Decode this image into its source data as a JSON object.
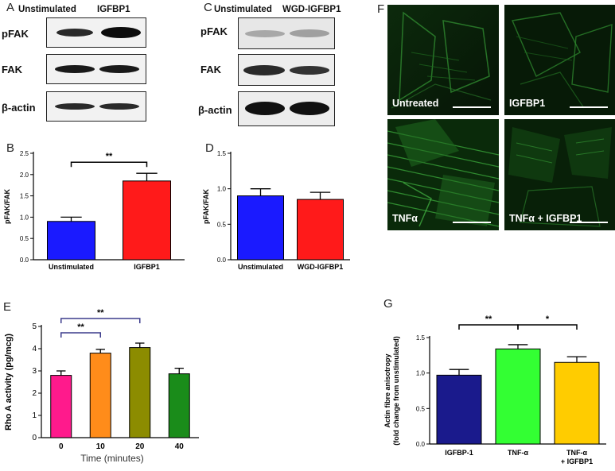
{
  "panels": {
    "A": {
      "letter": "A",
      "headers": [
        "Unstimulated",
        "IGFBP1"
      ],
      "rows": [
        "pFAK",
        "FAK",
        "β-actin"
      ]
    },
    "C": {
      "letter": "C",
      "headers": [
        "Unstimulated",
        "WGD-IGFBP1"
      ],
      "rows": [
        "pFAK",
        "FAK",
        "β-actin"
      ]
    },
    "F": {
      "letter": "F",
      "images": [
        "Untreated",
        "IGFBP1",
        "TNFα",
        "TNFα + IGFBP1"
      ]
    },
    "B": {
      "letter": "B"
    },
    "D": {
      "letter": "D"
    },
    "E": {
      "letter": "E"
    },
    "G": {
      "letter": "G"
    }
  },
  "chart_data": [
    {
      "panel": "B",
      "type": "bar",
      "categories": [
        "Unstimulated",
        "IGFBP1"
      ],
      "values": [
        0.9,
        1.85
      ],
      "errors": [
        0.1,
        0.18
      ],
      "colors": [
        "#1a1aff",
        "#ff1a1a"
      ],
      "ylabel": "pFAK/FAK",
      "xlabel": "",
      "ylim": [
        0,
        2.5
      ],
      "yticks": [
        "0.0",
        "0.5",
        "1.0",
        "1.5",
        "2.0",
        "2.5"
      ],
      "significance": [
        {
          "from": 0,
          "to": 1,
          "label": "**"
        }
      ]
    },
    {
      "panel": "D",
      "type": "bar",
      "categories": [
        "Unstimulated",
        "WGD-IGFBP1"
      ],
      "values": [
        0.9,
        0.85
      ],
      "errors": [
        0.1,
        0.1
      ],
      "colors": [
        "#1a1aff",
        "#ff1a1a"
      ],
      "ylabel": "pFAK/FAK",
      "xlabel": "",
      "ylim": [
        0,
        1.5
      ],
      "yticks": [
        "0.0",
        "0.5",
        "1.0",
        "1.5"
      ],
      "significance": []
    },
    {
      "panel": "E",
      "type": "bar",
      "categories": [
        "0",
        "10",
        "20",
        "40"
      ],
      "values": [
        2.8,
        3.8,
        4.05,
        2.87
      ],
      "errors": [
        0.2,
        0.17,
        0.2,
        0.25
      ],
      "colors": [
        "#ff1a8c",
        "#ff8c1a",
        "#8c8c00",
        "#1a8c1a"
      ],
      "ylabel": "Rho A activity (pg/mcg)",
      "xlabel": "Time (minutes)",
      "ylim": [
        0,
        5
      ],
      "yticks": [
        "0",
        "1",
        "2",
        "3",
        "4",
        "5"
      ],
      "significance": [
        {
          "from": 0,
          "to": 1,
          "label": "**"
        },
        {
          "from": 0,
          "to": 2,
          "label": "**"
        }
      ]
    },
    {
      "panel": "G",
      "type": "bar",
      "categories": [
        "IGFBP-1",
        "TNF-α",
        "TNF-α\n+ IGFBP1"
      ],
      "values": [
        0.97,
        1.34,
        1.15
      ],
      "errors": [
        0.08,
        0.06,
        0.08
      ],
      "colors": [
        "#1a1a8c",
        "#33ff33",
        "#ffcc00"
      ],
      "ylabel": "Actin fibre anisotropy\n(fold change from unstimulated)",
      "xlabel": "",
      "ylim": [
        0,
        1.5
      ],
      "yticks": [
        "0.0",
        "0.5",
        "1.0",
        "1.5"
      ],
      "significance": [
        {
          "from": 0,
          "to": 1,
          "label": "**"
        },
        {
          "from": 1,
          "to": 2,
          "label": "*"
        }
      ]
    }
  ]
}
